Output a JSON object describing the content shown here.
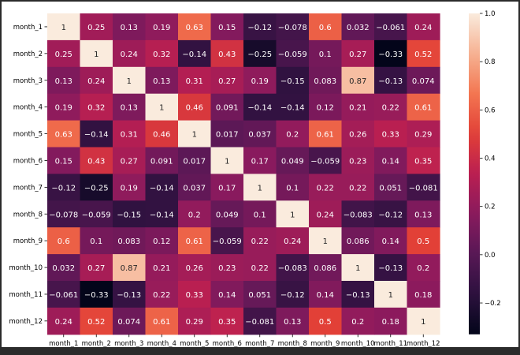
{
  "chart_data": {
    "type": "heatmap",
    "title": "",
    "xlabel": "",
    "ylabel": "",
    "rows": [
      "month_1",
      "month_2",
      "month_3",
      "month_4",
      "month_5",
      "month_6",
      "month_7",
      "month_8",
      "month_9",
      "month_10",
      "month_11",
      "month_12"
    ],
    "columns": [
      "month_1",
      "month_2",
      "month_3",
      "month_4",
      "month_5",
      "month_6",
      "month_7",
      "month_8",
      "month_9",
      "month_10",
      "month_11",
      "month_12"
    ],
    "values": [
      [
        1,
        0.25,
        0.13,
        0.19,
        0.63,
        0.15,
        -0.12,
        -0.078,
        0.6,
        0.032,
        -0.061,
        0.24
      ],
      [
        0.25,
        1,
        0.24,
        0.32,
        -0.14,
        0.43,
        -0.25,
        -0.059,
        0.1,
        0.27,
        -0.33,
        0.52
      ],
      [
        0.13,
        0.24,
        1,
        0.13,
        0.31,
        0.27,
        0.19,
        -0.15,
        0.083,
        0.87,
        -0.13,
        0.074
      ],
      [
        0.19,
        0.32,
        0.13,
        1,
        0.46,
        0.091,
        -0.14,
        -0.14,
        0.12,
        0.21,
        0.22,
        0.61
      ],
      [
        0.63,
        -0.14,
        0.31,
        0.46,
        1,
        0.017,
        0.037,
        0.2,
        0.61,
        0.26,
        0.33,
        0.29
      ],
      [
        0.15,
        0.43,
        0.27,
        0.091,
        0.017,
        1,
        0.17,
        0.049,
        -0.059,
        0.23,
        0.14,
        0.35
      ],
      [
        -0.12,
        -0.25,
        0.19,
        -0.14,
        0.037,
        0.17,
        1,
        0.1,
        0.22,
        0.22,
        0.051,
        -0.081
      ],
      [
        -0.078,
        -0.059,
        -0.15,
        -0.14,
        0.2,
        0.049,
        0.1,
        1,
        0.24,
        -0.083,
        -0.12,
        0.13
      ],
      [
        0.6,
        0.1,
        0.083,
        0.12,
        0.61,
        -0.059,
        0.22,
        0.24,
        1,
        0.086,
        0.14,
        0.5
      ],
      [
        0.032,
        0.27,
        0.87,
        0.21,
        0.26,
        0.23,
        0.22,
        -0.083,
        0.086,
        1,
        -0.13,
        0.2
      ],
      [
        -0.061,
        -0.33,
        -0.13,
        0.22,
        0.33,
        0.14,
        0.051,
        -0.12,
        0.14,
        -0.13,
        1,
        0.18
      ],
      [
        0.24,
        0.52,
        0.074,
        0.61,
        0.29,
        0.35,
        -0.081,
        0.13,
        0.5,
        0.2,
        0.18,
        1
      ]
    ],
    "value_labels": [
      [
        "1",
        "0.25",
        "0.13",
        "0.19",
        "0.63",
        "0.15",
        "−0.12",
        "−0.078",
        "0.6",
        "0.032",
        "−0.061",
        "0.24"
      ],
      [
        "0.25",
        "1",
        "0.24",
        "0.32",
        "−0.14",
        "0.43",
        "−0.25",
        "−0.059",
        "0.1",
        "0.27",
        "−0.33",
        "0.52"
      ],
      [
        "0.13",
        "0.24",
        "1",
        "0.13",
        "0.31",
        "0.27",
        "0.19",
        "−0.15",
        "0.083",
        "0.87",
        "−0.13",
        "0.074"
      ],
      [
        "0.19",
        "0.32",
        "0.13",
        "1",
        "0.46",
        "0.091",
        "−0.14",
        "−0.14",
        "0.12",
        "0.21",
        "0.22",
        "0.61"
      ],
      [
        "0.63",
        "−0.14",
        "0.31",
        "0.46",
        "1",
        "0.017",
        "0.037",
        "0.2",
        "0.61",
        "0.26",
        "0.33",
        "0.29"
      ],
      [
        "0.15",
        "0.43",
        "0.27",
        "0.091",
        "0.017",
        "1",
        "0.17",
        "0.049",
        "−0.059",
        "0.23",
        "0.14",
        "0.35"
      ],
      [
        "−0.12",
        "−0.25",
        "0.19",
        "−0.14",
        "0.037",
        "0.17",
        "1",
        "0.1",
        "0.22",
        "0.22",
        "0.051",
        "−0.081"
      ],
      [
        "−0.078",
        "−0.059",
        "−0.15",
        "−0.14",
        "0.2",
        "0.049",
        "0.1",
        "1",
        "0.24",
        "−0.083",
        "−0.12",
        "0.13"
      ],
      [
        "0.6",
        "0.1",
        "0.083",
        "0.12",
        "0.61",
        "−0.059",
        "0.22",
        "0.24",
        "1",
        "0.086",
        "0.14",
        "0.5"
      ],
      [
        "0.032",
        "0.27",
        "0.87",
        "0.21",
        "0.26",
        "0.23",
        "0.22",
        "−0.083",
        "0.086",
        "1",
        "−0.13",
        "0.2"
      ],
      [
        "−0.061",
        "−0.33",
        "−0.13",
        "0.22",
        "0.33",
        "0.14",
        "0.051",
        "−0.12",
        "0.14",
        "−0.13",
        "1",
        "0.18"
      ],
      [
        "0.24",
        "0.52",
        "0.074",
        "0.61",
        "0.29",
        "0.35",
        "−0.081",
        "0.13",
        "0.5",
        "0.2",
        "0.18",
        "1"
      ]
    ],
    "colorbar": {
      "min": -0.33,
      "max": 1.0,
      "ticks": [
        -0.2,
        0.0,
        0.2,
        0.4,
        0.6,
        0.8,
        1.0
      ],
      "tick_labels": [
        "−0.2",
        "0.0",
        "0.2",
        "0.4",
        "0.6",
        "0.8",
        "1.0"
      ]
    },
    "colormap": "rocket",
    "annotated": true,
    "grid": false
  }
}
